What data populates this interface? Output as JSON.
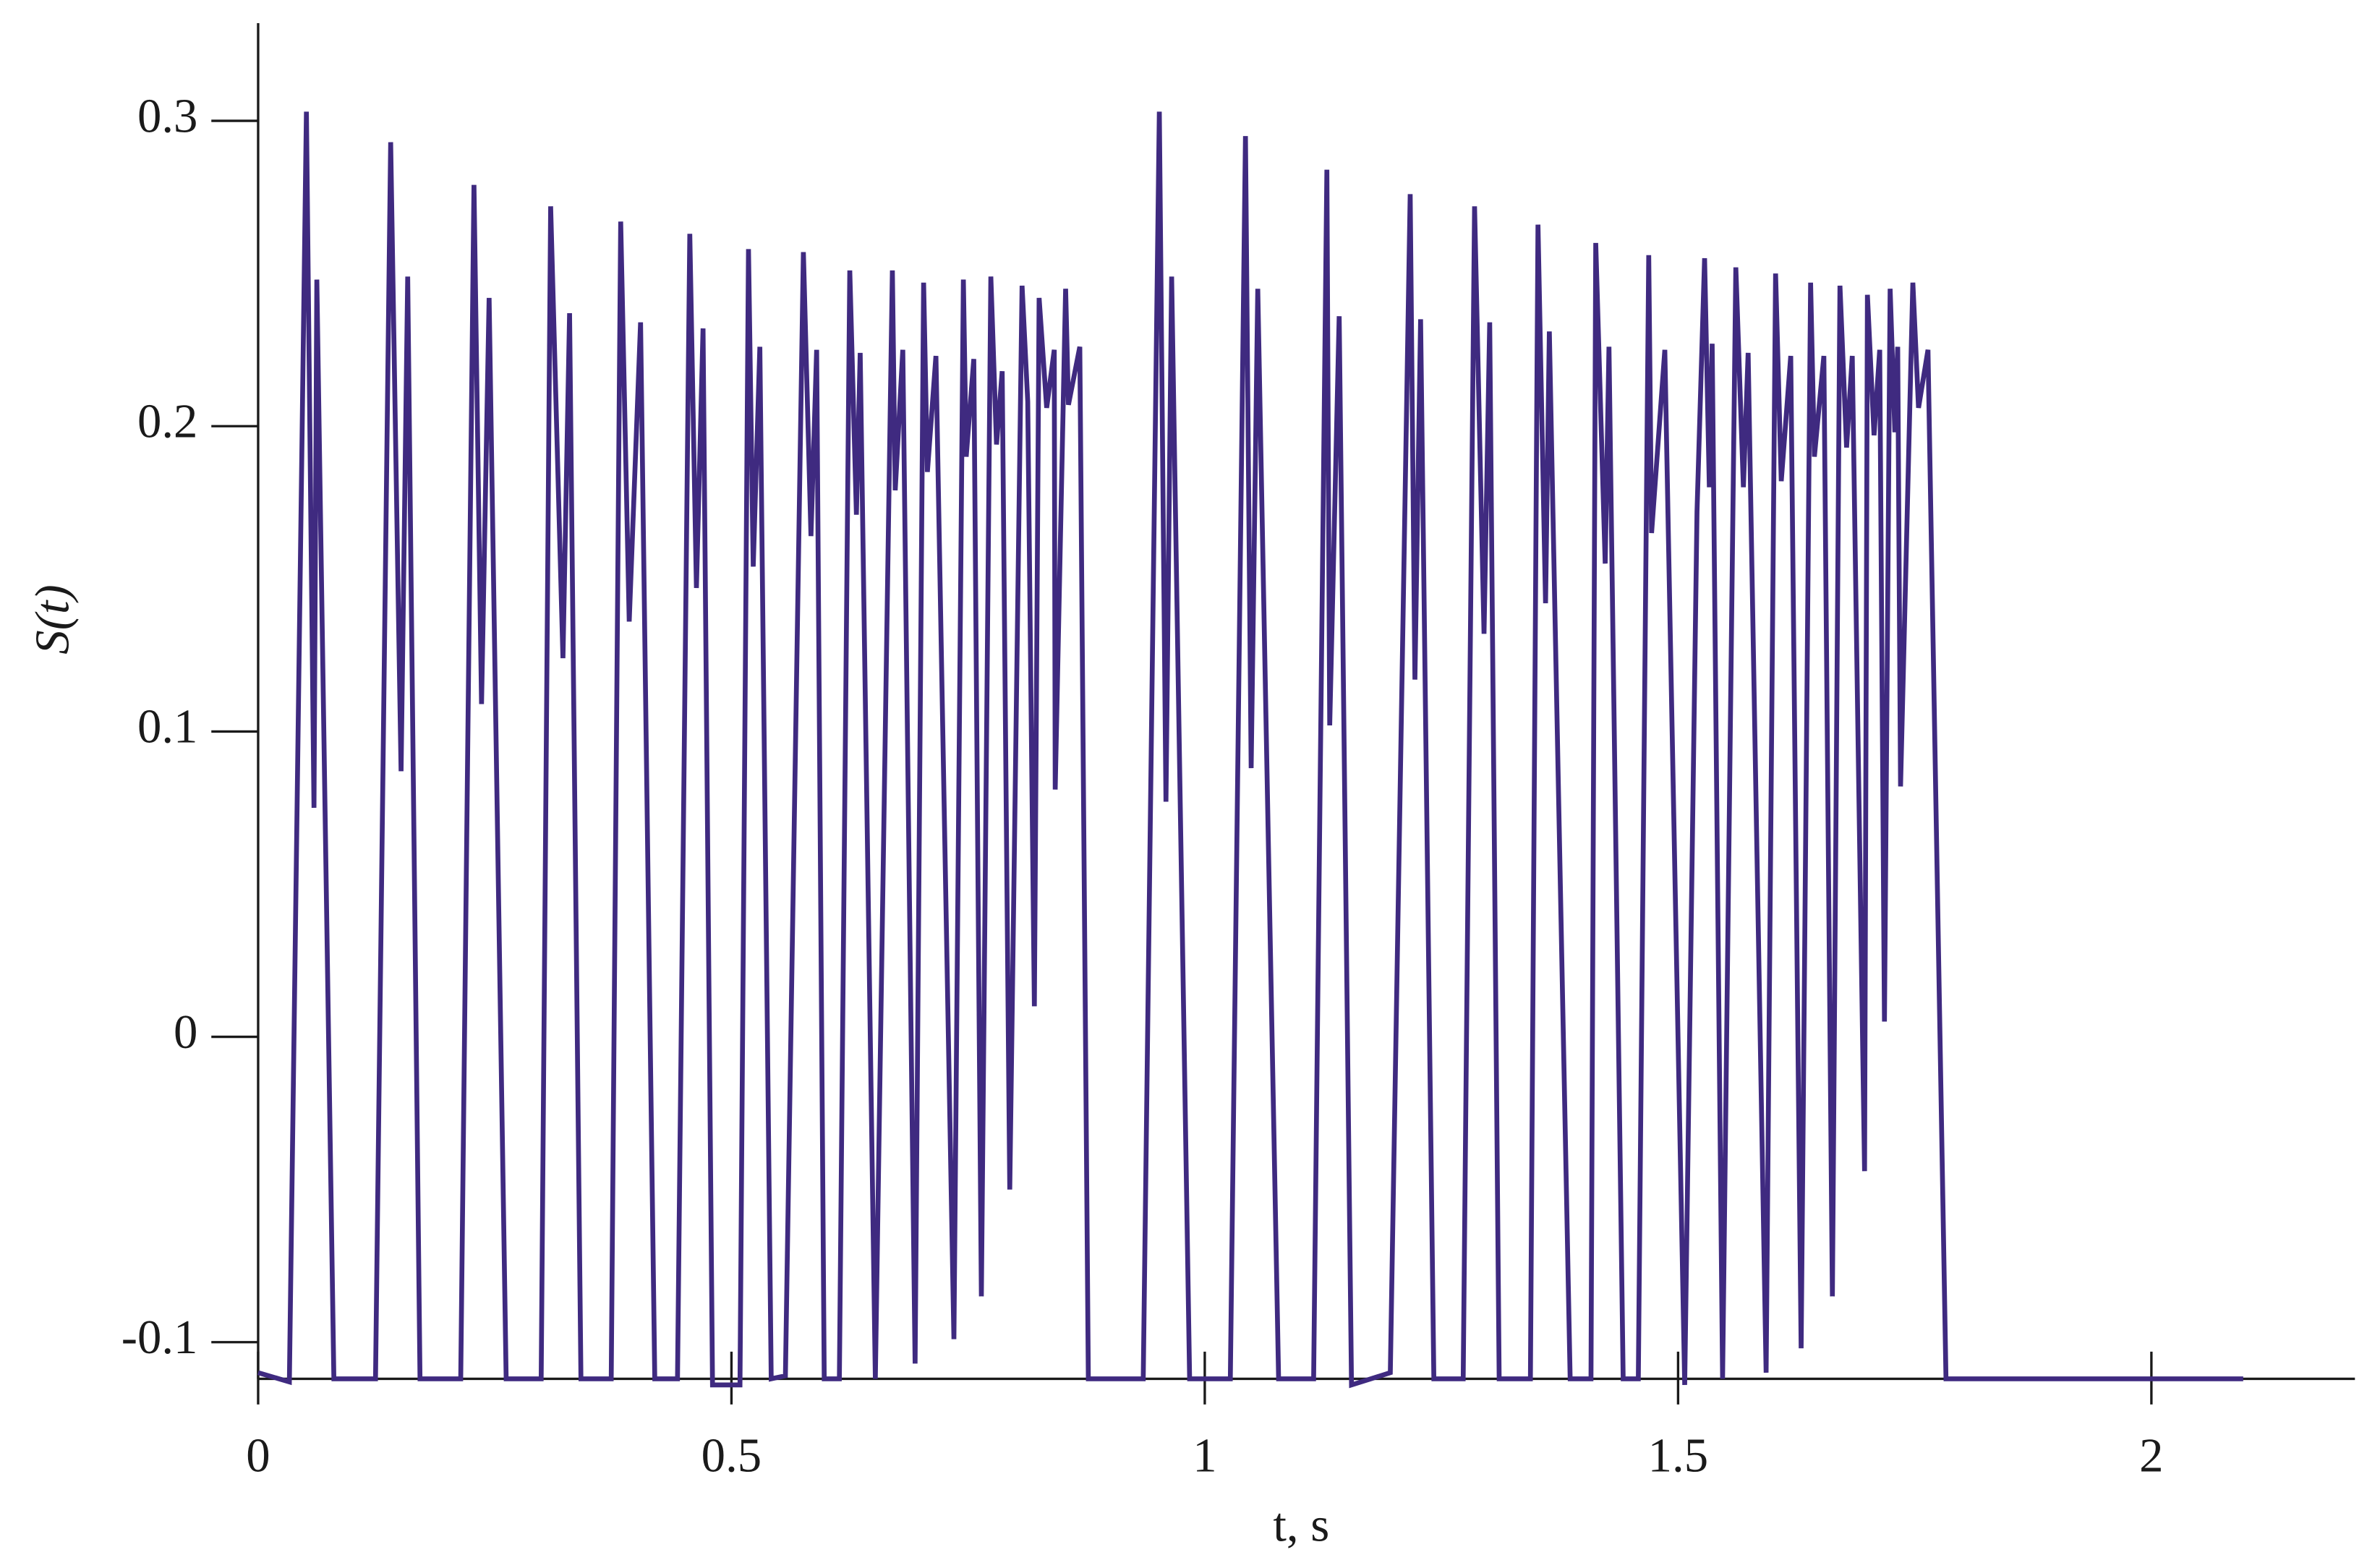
{
  "chart_data": {
    "type": "line",
    "xlabel": "t, s",
    "ylabel": "S(t)",
    "color": "#3f2a80",
    "xlim": [
      0,
      2.215
    ],
    "ylim": [
      -0.112,
      0.332
    ],
    "xticks": [
      0,
      0.5,
      1,
      1.5,
      2
    ],
    "yticks": [
      0.3,
      0.2,
      0.1,
      0,
      -0.1
    ],
    "x": [
      0,
      0.033,
      0.051,
      0.059,
      0.062,
      0.08,
      0.124,
      0.14,
      0.151,
      0.158,
      0.171,
      0.214,
      0.228,
      0.236,
      0.244,
      0.262,
      0.299,
      0.309,
      0.322,
      0.329,
      0.341,
      0.373,
      0.383,
      0.392,
      0.404,
      0.419,
      0.443,
      0.456,
      0.463,
      0.47,
      0.48,
      0.509,
      0.518,
      0.523,
      0.53,
      0.542,
      0.557,
      0.576,
      0.584,
      0.59,
      0.598,
      0.614,
      0.625,
      0.632,
      0.636,
      0.652,
      0.67,
      0.673,
      0.681,
      0.694,
      0.703,
      0.707,
      0.716,
      0.735,
      0.745,
      0.748,
      0.756,
      0.764,
      0.774,
      0.78,
      0.786,
      0.794,
      0.807,
      0.813,
      0.82,
      0.825,
      0.833,
      0.841,
      0.842,
      0.853,
      0.856,
      0.868,
      0.877,
      0.935,
      0.952,
      0.959,
      0.965,
      0.984,
      1.027,
      1.043,
      1.049,
      1.056,
      1.078,
      1.115,
      1.129,
      1.132,
      1.142,
      1.155,
      1.196,
      1.217,
      1.222,
      1.228,
      1.242,
      1.273,
      1.285,
      1.295,
      1.301,
      1.311,
      1.344,
      1.352,
      1.36,
      1.364,
      1.386,
      1.408,
      1.413,
      1.423,
      1.427,
      1.442,
      1.458,
      1.469,
      1.472,
      1.486,
      1.507,
      1.52,
      1.528,
      1.533,
      1.536,
      1.547,
      1.561,
      1.569,
      1.574,
      1.593,
      1.603,
      1.609,
      1.619,
      1.63,
      1.64,
      1.644,
      1.654,
      1.663,
      1.671,
      1.678,
      1.684,
      1.697,
      1.7,
      1.707,
      1.713,
      1.718,
      1.724,
      1.729,
      1.732,
      1.735,
      1.748,
      1.754,
      1.764,
      1.783,
      2.097
    ],
    "values": [
      -0.11,
      -0.113,
      0.303,
      0.075,
      0.248,
      -0.112,
      -0.112,
      0.293,
      0.087,
      0.249,
      -0.112,
      -0.112,
      0.279,
      0.109,
      0.242,
      -0.112,
      -0.112,
      0.272,
      0.124,
      0.237,
      -0.112,
      -0.112,
      0.267,
      0.136,
      0.234,
      -0.112,
      -0.112,
      0.263,
      0.147,
      0.232,
      -0.114,
      -0.114,
      0.258,
      0.154,
      0.226,
      -0.112,
      -0.111,
      0.257,
      0.164,
      0.225,
      -0.112,
      -0.112,
      0.251,
      0.171,
      0.224,
      -0.112,
      0.251,
      0.179,
      0.225,
      -0.107,
      0.247,
      0.185,
      0.223,
      -0.099,
      0.248,
      0.19,
      0.222,
      -0.085,
      0.249,
      0.194,
      0.218,
      -0.05,
      0.246,
      0.208,
      0.01,
      0.242,
      0.206,
      0.225,
      0.081,
      0.245,
      0.207,
      0.226,
      -0.112,
      -0.112,
      0.303,
      0.077,
      0.249,
      -0.112,
      -0.112,
      0.295,
      0.088,
      0.245,
      -0.112,
      -0.112,
      0.284,
      0.102,
      0.236,
      -0.114,
      -0.11,
      0.276,
      0.117,
      0.235,
      -0.112,
      -0.112,
      0.272,
      0.132,
      0.234,
      -0.112,
      -0.112,
      0.266,
      0.142,
      0.231,
      -0.112,
      -0.112,
      0.26,
      0.155,
      0.226,
      -0.112,
      -0.112,
      0.256,
      0.165,
      0.225,
      -0.114,
      0.172,
      0.255,
      0.18,
      0.227,
      -0.112,
      0.252,
      0.18,
      0.224,
      -0.11,
      0.25,
      0.182,
      0.223,
      -0.102,
      0.247,
      0.19,
      0.223,
      -0.085,
      0.246,
      0.193,
      0.223,
      -0.044,
      0.243,
      0.197,
      0.225,
      0.005,
      0.245,
      0.198,
      0.226,
      0.082,
      0.247,
      0.206,
      0.225,
      -0.112,
      -0.112
    ]
  }
}
